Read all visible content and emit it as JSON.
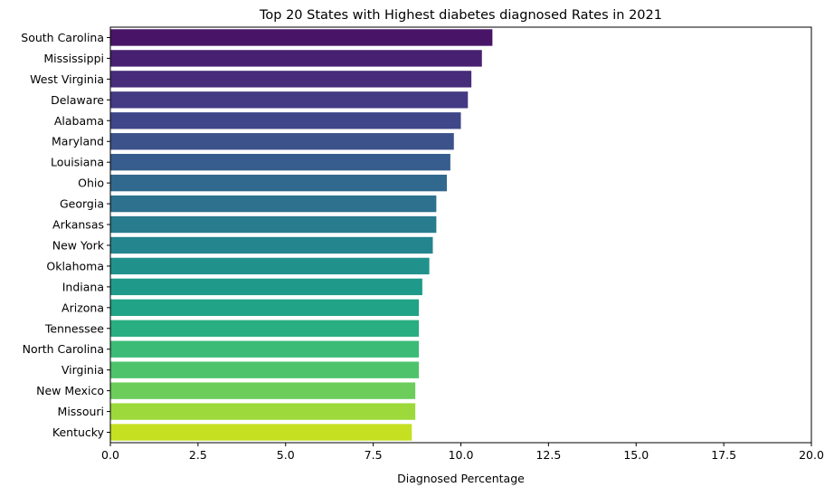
{
  "chart_data": {
    "type": "bar",
    "orientation": "horizontal",
    "title": "Top 20 States with Highest diabetes diagnosed Rates in 2021",
    "xlabel": "Diagnosed Percentage",
    "ylabel": "",
    "xlim": [
      0,
      20
    ],
    "xticks": [
      "0.0",
      "2.5",
      "5.0",
      "7.5",
      "10.0",
      "12.5",
      "15.0",
      "17.5",
      "20.0"
    ],
    "grid": false,
    "legend": "none",
    "categories": [
      "South Carolina",
      "Mississippi",
      "West Virginia",
      "Delaware",
      "Alabama",
      "Maryland",
      "Louisiana",
      "Ohio",
      "Georgia",
      "Arkansas",
      "New York",
      "Oklahoma",
      "Indiana",
      "Arizona",
      "Tennessee",
      "North Carolina",
      "Virginia",
      "New Mexico",
      "Missouri",
      "Kentucky"
    ],
    "values": [
      10.9,
      10.6,
      10.3,
      10.2,
      10.0,
      9.8,
      9.7,
      9.6,
      9.3,
      9.3,
      9.2,
      9.1,
      8.9,
      8.8,
      8.8,
      8.8,
      8.8,
      8.7,
      8.7,
      8.6
    ],
    "colors": [
      "#481467",
      "#482071",
      "#472c7a",
      "#443983",
      "#3f4788",
      "#3b528b",
      "#365d8d",
      "#31688e",
      "#2d718e",
      "#297b8e",
      "#25858e",
      "#21918c",
      "#1f9a8a",
      "#20a386",
      "#28ae80",
      "#3bbb75",
      "#4ec36b",
      "#6ccd5a",
      "#9dd93b",
      "#c5e021"
    ]
  }
}
